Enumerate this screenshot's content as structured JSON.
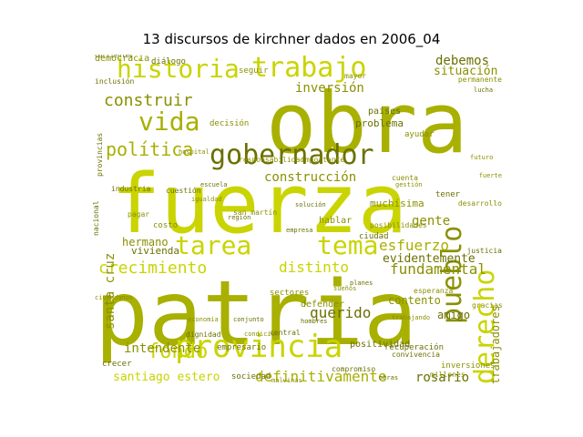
{
  "title": "13 discursos de kirchner dados en 2006_04",
  "palette": {
    "bright": "#c9d400",
    "mid": "#a8b000",
    "olive": "#8a9000",
    "dark": "#6b7000"
  },
  "words": [
    {
      "text": "patria",
      "w": 100,
      "c": "mid"
    },
    {
      "text": "fuerza",
      "w": 96,
      "c": "bright"
    },
    {
      "text": "obra",
      "w": 90,
      "c": "mid"
    },
    {
      "text": "provincia",
      "w": 60,
      "c": "bright"
    },
    {
      "text": "pueblo",
      "w": 58,
      "c": "olive"
    },
    {
      "text": "derecho",
      "w": 56,
      "c": "bright"
    },
    {
      "text": "tarea",
      "w": 52,
      "c": "bright"
    },
    {
      "text": "tema",
      "w": 52,
      "c": "bright"
    },
    {
      "text": "trabajo",
      "w": 50,
      "c": "bright"
    },
    {
      "text": "historia",
      "w": 50,
      "c": "bright"
    },
    {
      "text": "gobernador",
      "w": 48,
      "c": "dark"
    },
    {
      "text": "vida",
      "w": 45,
      "c": "mid"
    },
    {
      "text": "política",
      "w": 40,
      "c": "mid"
    },
    {
      "text": "crecimiento",
      "w": 38,
      "c": "bright"
    },
    {
      "text": "fondo",
      "w": 36,
      "c": "bright"
    },
    {
      "text": "construir",
      "w": 34,
      "c": "olive"
    },
    {
      "text": "distinto",
      "w": 32,
      "c": "bright"
    },
    {
      "text": "fundamental",
      "w": 32,
      "c": "olive"
    },
    {
      "text": "definitivamente",
      "w": 30,
      "c": "mid"
    },
    {
      "text": "querido",
      "w": 30,
      "c": "dark"
    },
    {
      "text": "esfuerzo",
      "w": 30,
      "c": "mid"
    },
    {
      "text": "santa cruz",
      "w": 28,
      "c": "olive"
    },
    {
      "text": "gente",
      "w": 28,
      "c": "olive"
    },
    {
      "text": "inversión",
      "w": 28,
      "c": "olive"
    },
    {
      "text": "construcción",
      "w": 28,
      "c": "olive"
    },
    {
      "text": "intendente",
      "w": 27,
      "c": "olive"
    },
    {
      "text": "rosario",
      "w": 27,
      "c": "dark"
    },
    {
      "text": "debemos",
      "w": 26,
      "c": "dark"
    },
    {
      "text": "situación",
      "w": 24,
      "c": "olive"
    },
    {
      "text": "evidentemente",
      "w": 24,
      "c": "dark"
    },
    {
      "text": "trabajadores",
      "w": 24,
      "c": "olive"
    },
    {
      "text": "santiago estero",
      "w": 24,
      "c": "bright"
    },
    {
      "text": "contento",
      "w": 22,
      "c": "olive"
    },
    {
      "text": "amigo",
      "w": 22,
      "c": "dark"
    },
    {
      "text": "hermano",
      "w": 22,
      "c": "olive"
    },
    {
      "text": "vivienda",
      "w": 22,
      "c": "dark"
    },
    {
      "text": "muchísima",
      "w": 22,
      "c": "olive"
    },
    {
      "text": "problema",
      "w": 21,
      "c": "dark"
    },
    {
      "text": "países",
      "w": 20,
      "c": "dark"
    },
    {
      "text": "defender",
      "w": 20,
      "c": "olive"
    },
    {
      "text": "positividad",
      "w": 20,
      "c": "dark"
    },
    {
      "text": "hablar",
      "w": 20,
      "c": "olive"
    },
    {
      "text": "democracia",
      "w": 19,
      "c": "olive"
    },
    {
      "text": "empresario",
      "w": 18,
      "c": "dark"
    },
    {
      "text": "ayudar",
      "w": 18,
      "c": "olive"
    },
    {
      "text": "decisión",
      "w": 18,
      "c": "olive"
    },
    {
      "text": "seguir",
      "w": 18,
      "c": "olive"
    },
    {
      "text": "diálogo",
      "w": 18,
      "c": "dark"
    },
    {
      "text": "tener",
      "w": 17,
      "c": "dark"
    },
    {
      "text": "ciudad",
      "w": 17,
      "c": "dark"
    },
    {
      "text": "costo",
      "w": 16,
      "c": "olive"
    },
    {
      "text": "recuperación",
      "w": 16,
      "c": "dark"
    },
    {
      "text": "crecer",
      "w": 16,
      "c": "dark"
    },
    {
      "text": "sociedad",
      "w": 16,
      "c": "dark"
    },
    {
      "text": "sectores",
      "w": 16,
      "c": "olive"
    },
    {
      "text": "inversiones",
      "w": 16,
      "c": "olive"
    },
    {
      "text": "justicia",
      "w": 15,
      "c": "dark"
    },
    {
      "text": "permanente",
      "w": 15,
      "c": "olive"
    },
    {
      "text": "compromiso",
      "w": 15,
      "c": "dark"
    },
    {
      "text": "posibilidades",
      "w": 15,
      "c": "olive"
    },
    {
      "text": "convivencia",
      "w": 14,
      "c": "dark"
    },
    {
      "text": "mayor",
      "w": 14,
      "c": "olive"
    },
    {
      "text": "inclusión",
      "w": 14,
      "c": "dark"
    },
    {
      "text": "cuestión",
      "w": 14,
      "c": "dark"
    },
    {
      "text": "millones",
      "w": 14,
      "c": "olive"
    },
    {
      "text": "gracias",
      "w": 14,
      "c": "olive"
    },
    {
      "text": "dignidad",
      "w": 14,
      "c": "dark"
    },
    {
      "text": "esperanza",
      "w": 13,
      "c": "olive"
    },
    {
      "text": "responsabilidad",
      "w": 13,
      "c": "olive"
    },
    {
      "text": "san martín",
      "w": 13,
      "c": "olive"
    },
    {
      "text": "nacional",
      "w": 13,
      "c": "dark"
    },
    {
      "text": "pagar",
      "w": 12,
      "c": "olive"
    },
    {
      "text": "central",
      "w": 12,
      "c": "dark"
    },
    {
      "text": "provincias",
      "w": 12,
      "c": "dark"
    },
    {
      "text": "cuenta",
      "w": 12,
      "c": "olive"
    },
    {
      "text": "importante",
      "w": 12,
      "c": "olive"
    },
    {
      "text": "industria",
      "w": 12,
      "c": "dark"
    },
    {
      "text": "desarrollo",
      "w": 12,
      "c": "olive"
    },
    {
      "text": "corrientes",
      "w": 11,
      "c": "dark"
    },
    {
      "text": "condición",
      "w": 11,
      "c": "olive"
    },
    {
      "text": "conjunto",
      "w": 11,
      "c": "dark"
    },
    {
      "text": "igualdad",
      "w": 11,
      "c": "olive"
    },
    {
      "text": "hombres",
      "w": 11,
      "c": "dark"
    },
    {
      "text": "economía",
      "w": 11,
      "c": "olive"
    },
    {
      "text": "obras",
      "w": 11,
      "c": "dark"
    },
    {
      "text": "ciudadanos",
      "w": 10,
      "c": "olive"
    },
    {
      "text": "región",
      "w": 10,
      "c": "dark"
    },
    {
      "text": "malvinas",
      "w": 10,
      "c": "olive"
    },
    {
      "text": "lucha",
      "w": 10,
      "c": "dark"
    },
    {
      "text": "trabajando",
      "w": 10,
      "c": "olive"
    },
    {
      "text": "futuro",
      "w": 10,
      "c": "olive"
    },
    {
      "text": "empresa",
      "w": 10,
      "c": "dark"
    },
    {
      "text": "gestión",
      "w": 10,
      "c": "olive"
    },
    {
      "text": "solución",
      "w": 10,
      "c": "dark"
    },
    {
      "text": "hospital",
      "w": 9,
      "c": "olive"
    },
    {
      "text": "escuela",
      "w": 9,
      "c": "dark"
    },
    {
      "text": "sueños",
      "w": 9,
      "c": "olive"
    },
    {
      "text": "planes",
      "w": 9,
      "c": "dark"
    },
    {
      "text": "fuerte",
      "w": 9,
      "c": "olive"
    }
  ]
}
